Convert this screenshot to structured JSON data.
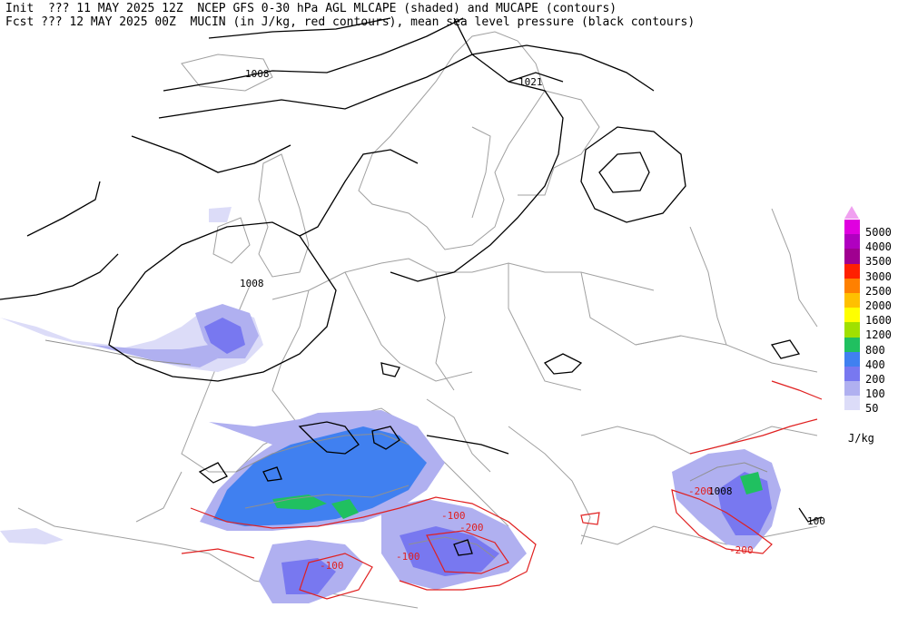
{
  "header": {
    "line1": "Init  ??? 11 MAY 2025 12Z  NCEP GFS 0-30 hPa AGL MLCAPE (shaded) and MUCAPE (contours)",
    "line2": "Fcst ??? 12 MAY 2025 00Z  MUCIN (in J/kg, red contours), mean sea level pressure (black contours)"
  },
  "legend": {
    "units": "J/kg",
    "levels": [
      {
        "label": "5000",
        "color": "#e000e0"
      },
      {
        "label": "4000",
        "color": "#b000c0"
      },
      {
        "label": "3500",
        "color": "#a00090"
      },
      {
        "label": "3000",
        "color": "#ff2000"
      },
      {
        "label": "2500",
        "color": "#ff8000"
      },
      {
        "label": "2000",
        "color": "#ffc000"
      },
      {
        "label": "1600",
        "color": "#ffff00"
      },
      {
        "label": "1200",
        "color": "#a0e000"
      },
      {
        "label": "800",
        "color": "#20c060"
      },
      {
        "label": "400",
        "color": "#4080f0"
      },
      {
        "label": "200",
        "color": "#7878f0"
      },
      {
        "label": "100",
        "color": "#b0b0f0"
      },
      {
        "label": "50",
        "color": "#dcdcf8"
      }
    ]
  },
  "map_labels": {
    "pressure_1008_north": "1008",
    "pressure_1021": "1021",
    "pressure_1008_west": "1008",
    "pressure_1008_east": "1008",
    "pressure_100": "100",
    "cin_100_a": "-100",
    "cin_200_a": "-200",
    "cin_100_b": "-100",
    "cin_100_c": "-100",
    "cin_200_b": "-200",
    "cin_200_c": "-200"
  }
}
